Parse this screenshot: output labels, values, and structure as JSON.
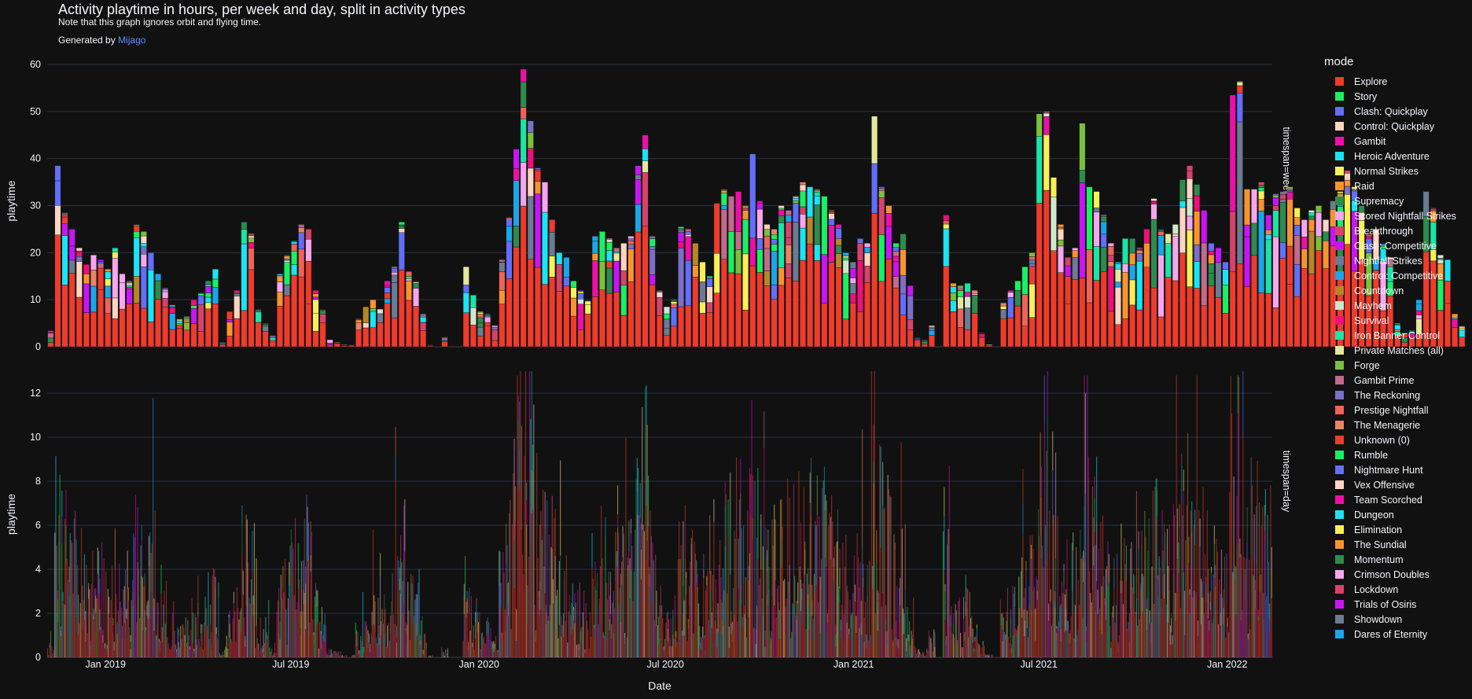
{
  "header": {
    "title": "Activity playtime in hours, per week and day, split in activity types",
    "subtitle": "Note that this graph ignores orbit and flying time.",
    "generated_prefix": "Generated by",
    "generated_link": "Mijago"
  },
  "legend": {
    "title": "mode",
    "items": [
      {
        "label": "Explore",
        "color": "#ef3b2c"
      },
      {
        "label": "Story",
        "color": "#19f063"
      },
      {
        "label": "Clash: Quickplay",
        "color": "#636efa"
      },
      {
        "label": "Control: Quickplay",
        "color": "#ffd5c2"
      },
      {
        "label": "Gambit",
        "color": "#ee0fa8"
      },
      {
        "label": "Heroic Adventure",
        "color": "#19e5f5"
      },
      {
        "label": "Normal Strikes",
        "color": "#f7f056"
      },
      {
        "label": "Raid",
        "color": "#f7942f"
      },
      {
        "label": "Supremacy",
        "color": "#2e8b4e"
      },
      {
        "label": "Scored Nightfall Strikes",
        "color": "#f5a6ee"
      },
      {
        "label": "Breakthrough",
        "color": "#d6436a"
      },
      {
        "label": "Clash: Competitive",
        "color": "#c914f5"
      },
      {
        "label": "Nightfall Strikes",
        "color": "#6a7b93"
      },
      {
        "label": "Control: Competitive",
        "color": "#1aa6e8"
      },
      {
        "label": "Countdown",
        "color": "#b58728"
      },
      {
        "label": "Mayhem",
        "color": "#cfe8cd"
      },
      {
        "label": "Survival",
        "color": "#ee0f7a"
      },
      {
        "label": "Iron Banner Control",
        "color": "#19e5a6"
      },
      {
        "label": "Private Matches (all)",
        "color": "#e5e89b"
      },
      {
        "label": "Forge",
        "color": "#79c13a"
      },
      {
        "label": "Gambit Prime",
        "color": "#c36a8a"
      },
      {
        "label": "The Reckoning",
        "color": "#7b6fc7"
      },
      {
        "label": "Prestige Nightfall",
        "color": "#f0625a"
      },
      {
        "label": "The Menagerie",
        "color": "#e88563"
      },
      {
        "label": "Unknown (0)",
        "color": "#ef3b2c"
      },
      {
        "label": "Rumble",
        "color": "#19f063"
      },
      {
        "label": "Nightmare Hunt",
        "color": "#636efa"
      },
      {
        "label": "Vex Offensive",
        "color": "#ffd5c2"
      },
      {
        "label": "Team Scorched",
        "color": "#ee0fa8"
      },
      {
        "label": "Dungeon",
        "color": "#19e5f5"
      },
      {
        "label": "Elimination",
        "color": "#f7f056"
      },
      {
        "label": "The Sundial",
        "color": "#f7942f"
      },
      {
        "label": "Momentum",
        "color": "#2e8b4e"
      },
      {
        "label": "Crimson Doubles",
        "color": "#f5a6ee"
      },
      {
        "label": "Lockdown",
        "color": "#d6436a"
      },
      {
        "label": "Trials of Osiris",
        "color": "#c914f5"
      },
      {
        "label": "Showdown",
        "color": "#6a7b93"
      },
      {
        "label": "Dares of Eternity",
        "color": "#1aa6e8"
      }
    ]
  },
  "chart_data": [
    {
      "type": "bar",
      "barmode": "stack",
      "facet": "timespan=week",
      "ylabel": "playtime",
      "ylim": [
        0,
        62
      ],
      "yticks": [
        0,
        10,
        20,
        30,
        40,
        50,
        60
      ],
      "x_start": "2018-11-05",
      "x_end": "2022-02-14",
      "x_step_days": 7,
      "week_totals": [
        3.5,
        38.5,
        28.5,
        25,
        21,
        17.5,
        19.5,
        18.5,
        16.5,
        21,
        15.5,
        14,
        26,
        24.5,
        20,
        15.5,
        12.5,
        9,
        6,
        6.5,
        10,
        11.5,
        14,
        16.5,
        1,
        7.5,
        12,
        26.5,
        24,
        8,
        5,
        2.5,
        15.5,
        19.5,
        22.5,
        26,
        25,
        12,
        8,
        1.5,
        1,
        0.5,
        0.5,
        6,
        8.5,
        10,
        8,
        14,
        17,
        26.5,
        16,
        14,
        7,
        0.5,
        0,
        2,
        0,
        0,
        17,
        11,
        7.5,
        7,
        4.5,
        18.5,
        27.5,
        42,
        59,
        48,
        38,
        35,
        27,
        20,
        19,
        14,
        12,
        10,
        23.5,
        24.5,
        23,
        21,
        22,
        23.5,
        38.5,
        45,
        23.5,
        12,
        8.5,
        10,
        25.5,
        25,
        22,
        18,
        15,
        30.5,
        33.5,
        32,
        33,
        30,
        41,
        31,
        26,
        25,
        30,
        29,
        32,
        35,
        34,
        33.5,
        32,
        29,
        26,
        20,
        18,
        23,
        22,
        49,
        34,
        30,
        22,
        24,
        13,
        2,
        1.5,
        4.5,
        0,
        28,
        13.5,
        13,
        13.5,
        12,
        3,
        0.5,
        0,
        9.5,
        12,
        14,
        17,
        20,
        49.5,
        50,
        36,
        26,
        19,
        21,
        47.5,
        34,
        33,
        28,
        22,
        18,
        23,
        23,
        21,
        25,
        31.5,
        25,
        24,
        26,
        35.5,
        38.5,
        34.5,
        29,
        22,
        21,
        18,
        53.5,
        56.5,
        33.5,
        33.5,
        35,
        28,
        32.5,
        33,
        34,
        29.5,
        27,
        29,
        30,
        27,
        31,
        33,
        37.5,
        34,
        30,
        24,
        25,
        22,
        19,
        5,
        3,
        3.5,
        10,
        33,
        29.5,
        19.5,
        18.5,
        7,
        4.5
      ]
    },
    {
      "type": "bar",
      "barmode": "stack",
      "facet": "timespan=day",
      "ylabel": "playtime",
      "ylim": [
        0,
        13
      ],
      "yticks": [
        0,
        2,
        4,
        6,
        8,
        10,
        12
      ],
      "xlabel": "Date",
      "xticks": [
        "Jan 2019",
        "Jul 2019",
        "Jan 2020",
        "Jul 2020",
        "Jan 2021",
        "Jul 2021",
        "Jan 2022"
      ],
      "x_tick_dates": [
        "2019-01-01",
        "2019-07-01",
        "2020-01-01",
        "2020-07-01",
        "2021-01-01",
        "2021-07-01",
        "2022-01-01"
      ],
      "x_start": "2018-11-05",
      "x_end": "2022-02-14"
    }
  ]
}
